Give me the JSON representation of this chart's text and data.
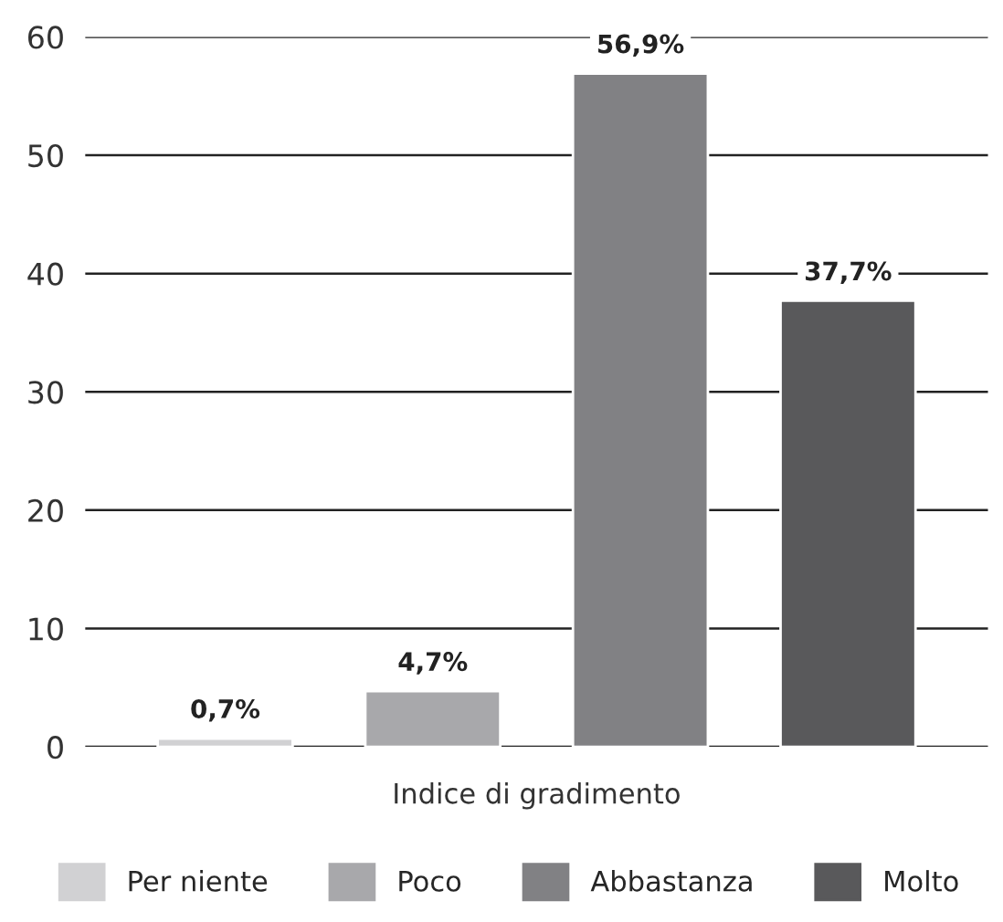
{
  "chart_data": {
    "type": "bar",
    "categories": [
      "Indice di gradimento"
    ],
    "series": [
      {
        "name": "Per niente",
        "color": "#d1d1d3",
        "values": [
          0.7
        ],
        "value_labels": [
          "0,7%"
        ]
      },
      {
        "name": "Poco",
        "color": "#a8a8ab",
        "values": [
          4.7
        ],
        "value_labels": [
          "4,7%"
        ]
      },
      {
        "name": "Abbastanza",
        "color": "#818184",
        "values": [
          56.9
        ],
        "value_labels": [
          "56,9%"
        ]
      },
      {
        "name": "Molto",
        "color": "#59595b",
        "values": [
          37.7
        ],
        "value_labels": [
          "37,7%"
        ]
      }
    ],
    "ylim": [
      0,
      60
    ],
    "yticks": [
      0,
      10,
      20,
      30,
      40,
      50,
      60
    ],
    "grid": "y",
    "legend": "bottom"
  }
}
